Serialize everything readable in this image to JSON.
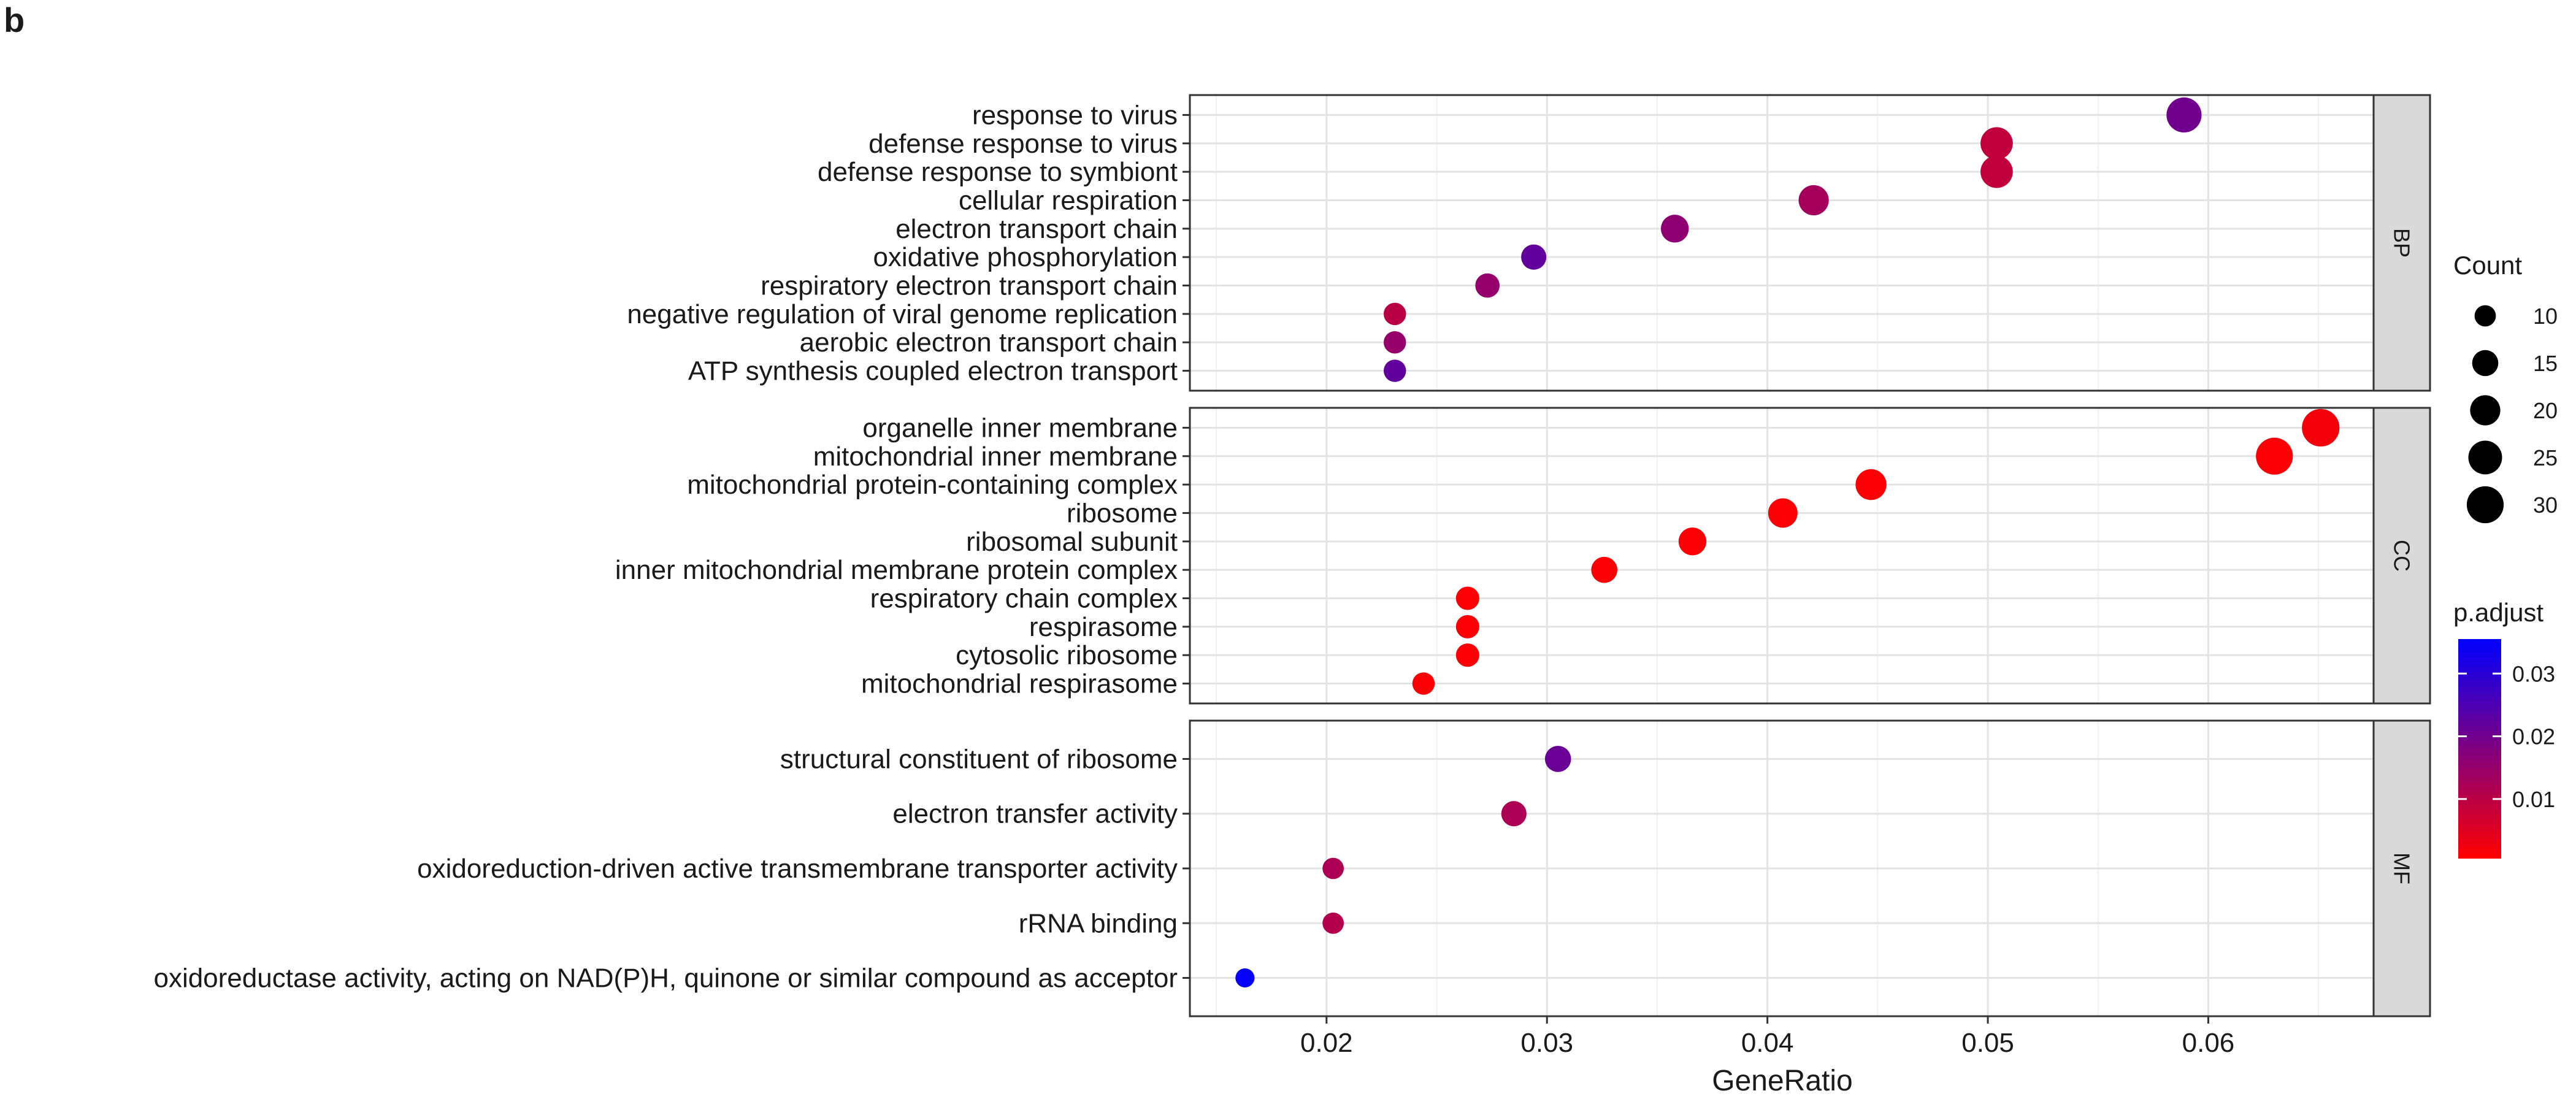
{
  "panel_label": "b",
  "chart_data": {
    "type": "scatter",
    "xlabel": "GeneRatio",
    "ylabel": "",
    "xlim": [
      0.0138,
      0.0675
    ],
    "x_ticks": [
      0.02,
      0.03,
      0.04,
      0.05,
      0.06
    ],
    "x_tick_labels": [
      "0.02",
      "0.03",
      "0.04",
      "0.05",
      "0.06"
    ],
    "grid": true,
    "legend_position": "right",
    "facets": [
      {
        "label": "BP",
        "terms": [
          {
            "term": "response to virus",
            "gene_ratio": 0.0589,
            "count": 27,
            "p_adjust": 0.02
          },
          {
            "term": "defense response to virus",
            "gene_ratio": 0.0504,
            "count": 23,
            "p_adjust": 0.009
          },
          {
            "term": "defense response to symbiont",
            "gene_ratio": 0.0504,
            "count": 23,
            "p_adjust": 0.009
          },
          {
            "term": "cellular respiration",
            "gene_ratio": 0.0421,
            "count": 20,
            "p_adjust": 0.013
          },
          {
            "term": "electron transport chain",
            "gene_ratio": 0.0358,
            "count": 17,
            "p_adjust": 0.016
          },
          {
            "term": "oxidative phosphorylation",
            "gene_ratio": 0.0294,
            "count": 14,
            "p_adjust": 0.022
          },
          {
            "term": "respiratory electron transport chain",
            "gene_ratio": 0.0273,
            "count": 13,
            "p_adjust": 0.015
          },
          {
            "term": "negative regulation of viral genome replication",
            "gene_ratio": 0.0231,
            "count": 11,
            "p_adjust": 0.01
          },
          {
            "term": "aerobic electron transport chain",
            "gene_ratio": 0.0231,
            "count": 11,
            "p_adjust": 0.015
          },
          {
            "term": "ATP synthesis coupled electron transport",
            "gene_ratio": 0.0231,
            "count": 11,
            "p_adjust": 0.022
          }
        ]
      },
      {
        "label": "CC",
        "terms": [
          {
            "term": "organelle inner membrane",
            "gene_ratio": 0.0651,
            "count": 31,
            "p_adjust": 0.002
          },
          {
            "term": "mitochondrial inner membrane",
            "gene_ratio": 0.063,
            "count": 30,
            "p_adjust": 0.001
          },
          {
            "term": "mitochondrial protein-containing complex",
            "gene_ratio": 0.0447,
            "count": 21,
            "p_adjust": 0.001
          },
          {
            "term": "ribosome",
            "gene_ratio": 0.0407,
            "count": 19,
            "p_adjust": 0.001
          },
          {
            "term": "ribosomal subunit",
            "gene_ratio": 0.0366,
            "count": 17,
            "p_adjust": 0.001
          },
          {
            "term": "inner mitochondrial membrane protein complex",
            "gene_ratio": 0.0326,
            "count": 15,
            "p_adjust": 0.001
          },
          {
            "term": "respiratory chain complex",
            "gene_ratio": 0.0264,
            "count": 12,
            "p_adjust": 0.001
          },
          {
            "term": "respirasome",
            "gene_ratio": 0.0264,
            "count": 12,
            "p_adjust": 0.001
          },
          {
            "term": "cytosolic ribosome",
            "gene_ratio": 0.0264,
            "count": 12,
            "p_adjust": 0.001
          },
          {
            "term": "mitochondrial respirasome",
            "gene_ratio": 0.0244,
            "count": 11,
            "p_adjust": 0.001
          }
        ]
      },
      {
        "label": "MF",
        "terms": [
          {
            "term": "structural constituent of ribosome",
            "gene_ratio": 0.0305,
            "count": 15,
            "p_adjust": 0.021
          },
          {
            "term": "electron transfer activity",
            "gene_ratio": 0.0285,
            "count": 14,
            "p_adjust": 0.012
          },
          {
            "term": "oxidoreduction-driven active transmembrane transporter activity",
            "gene_ratio": 0.0203,
            "count": 10,
            "p_adjust": 0.012
          },
          {
            "term": "rRNA binding",
            "gene_ratio": 0.0203,
            "count": 10,
            "p_adjust": 0.011
          },
          {
            "term": "oxidoreductase activity, acting on NAD(P)H, quinone or similar compound as acceptor",
            "gene_ratio": 0.0163,
            "count": 8,
            "p_adjust": 0.035
          }
        ]
      }
    ],
    "size_legend": {
      "title": "Count",
      "values": [
        10,
        15,
        20,
        25,
        30
      ],
      "labels": [
        "10",
        "15",
        "20",
        "25",
        "30"
      ]
    },
    "color_legend": {
      "title": "p.adjust",
      "low_color": "#ff0000",
      "high_color": "#0000ff",
      "range": [
        0.0005,
        0.0355
      ],
      "ticks": [
        0.01,
        0.02,
        0.03
      ],
      "tick_labels": [
        "0.01",
        "0.02",
        "0.03"
      ]
    }
  }
}
